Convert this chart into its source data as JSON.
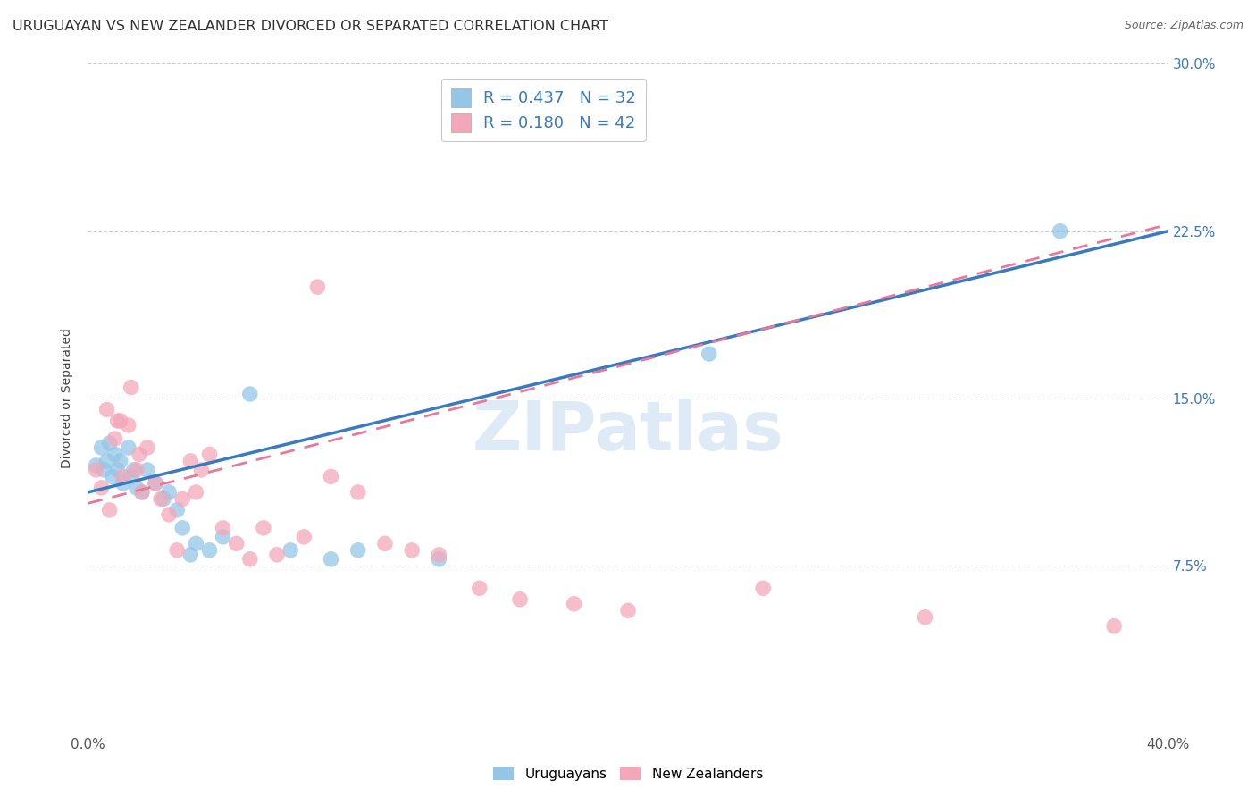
{
  "title": "URUGUAYAN VS NEW ZEALANDER DIVORCED OR SEPARATED CORRELATION CHART",
  "source": "Source: ZipAtlas.com",
  "ylabel": "Divorced or Separated",
  "xlim": [
    0.0,
    0.4
  ],
  "ylim": [
    0.0,
    0.3
  ],
  "yticks": [
    0.0,
    0.075,
    0.15,
    0.225,
    0.3
  ],
  "yticklabels": [
    "",
    "7.5%",
    "15.0%",
    "22.5%",
    "30.0%"
  ],
  "xticks": [
    0.0,
    0.1,
    0.2,
    0.3,
    0.4
  ],
  "xticklabels": [
    "0.0%",
    "",
    "",
    "",
    "40.0%"
  ],
  "blue_color": "#94c6e7",
  "pink_color": "#f4a7b9",
  "blue_line_color": "#3a7abf",
  "pink_line_color": "#e8799a",
  "legend_label1": "R = 0.437   N = 32",
  "legend_label2": "R = 0.180   N = 42",
  "bottom_label1": "Uruguayans",
  "bottom_label2": "New Zealanders",
  "watermark": "ZIPatlas",
  "background_color": "#ffffff",
  "grid_color": "#cccccc",
  "title_fontsize": 11.5,
  "tick_fontsize": 11,
  "watermark_fontsize": 55,
  "watermark_color": "#c8dff0",
  "uruguayan_x": [
    0.003,
    0.005,
    0.006,
    0.007,
    0.008,
    0.009,
    0.01,
    0.011,
    0.012,
    0.013,
    0.015,
    0.016,
    0.017,
    0.018,
    0.02,
    0.022,
    0.025,
    0.028,
    0.03,
    0.033,
    0.035,
    0.038,
    0.04,
    0.045,
    0.05,
    0.06,
    0.075,
    0.09,
    0.1,
    0.13,
    0.23,
    0.36
  ],
  "uruguayan_y": [
    0.12,
    0.128,
    0.118,
    0.122,
    0.13,
    0.115,
    0.125,
    0.118,
    0.122,
    0.112,
    0.128,
    0.115,
    0.118,
    0.11,
    0.108,
    0.118,
    0.112,
    0.105,
    0.108,
    0.1,
    0.092,
    0.08,
    0.085,
    0.082,
    0.088,
    0.152,
    0.082,
    0.078,
    0.082,
    0.078,
    0.17,
    0.225
  ],
  "nz_x": [
    0.003,
    0.005,
    0.007,
    0.008,
    0.01,
    0.011,
    0.012,
    0.013,
    0.015,
    0.016,
    0.018,
    0.019,
    0.02,
    0.022,
    0.025,
    0.027,
    0.03,
    0.033,
    0.035,
    0.038,
    0.04,
    0.042,
    0.045,
    0.05,
    0.055,
    0.06,
    0.065,
    0.07,
    0.08,
    0.085,
    0.09,
    0.1,
    0.11,
    0.12,
    0.13,
    0.145,
    0.16,
    0.18,
    0.2,
    0.25,
    0.31,
    0.38
  ],
  "nz_y": [
    0.118,
    0.11,
    0.145,
    0.1,
    0.132,
    0.14,
    0.14,
    0.115,
    0.138,
    0.155,
    0.118,
    0.125,
    0.108,
    0.128,
    0.112,
    0.105,
    0.098,
    0.082,
    0.105,
    0.122,
    0.108,
    0.118,
    0.125,
    0.092,
    0.085,
    0.078,
    0.092,
    0.08,
    0.088,
    0.2,
    0.115,
    0.108,
    0.085,
    0.082,
    0.08,
    0.065,
    0.06,
    0.058,
    0.055,
    0.065,
    0.052,
    0.048
  ]
}
